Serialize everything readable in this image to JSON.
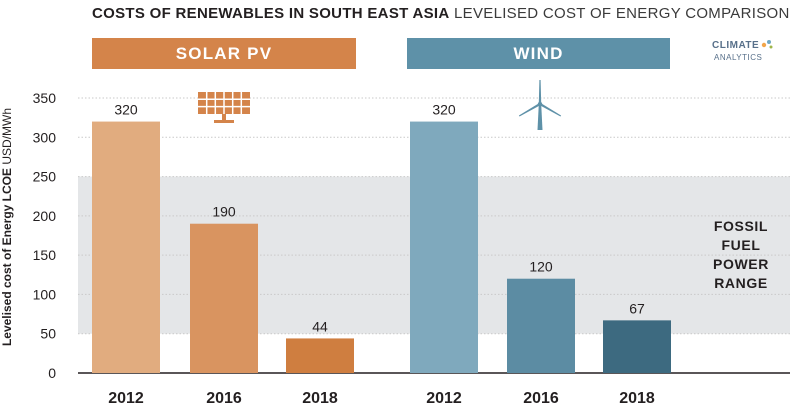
{
  "header": {
    "title_bold": "COSTS OF RENEWABLES IN SOUTH EAST ASIA",
    "title_light": "LEVELISED COST OF ENERGY COMPARISON"
  },
  "logo": {
    "line1": "CLIMATE",
    "line2": "ANALYTICS"
  },
  "colors": {
    "solar_2012": "#e1ac7f",
    "solar_2016": "#d99460",
    "solar_2018": "#cf7e40",
    "wind_2012": "#7fa9bd",
    "wind_2016": "#5c8ca3",
    "wind_2018": "#3d6a80",
    "solar_band": "#d4844a",
    "wind_band": "#5e91a8",
    "fossil_band": "#e4e6e8"
  },
  "chart_data": {
    "type": "bar",
    "title": "COSTS OF RENEWABLES IN SOUTH EAST ASIA LEVELISED COST OF ENERGY COMPARISON",
    "ylabel_bold": "Levelised cost of Energy LCOE",
    "ylabel_unit": "USD/MWh",
    "ylim": [
      0,
      350
    ],
    "yticks": [
      0,
      50,
      100,
      150,
      200,
      250,
      300,
      350
    ],
    "groups": [
      {
        "name": "SOLAR PV",
        "icon": "solar-panel-icon",
        "categories": [
          "2012",
          "2016",
          "2018"
        ],
        "values": [
          320,
          190,
          44
        ],
        "labels": [
          "320",
          "190",
          "44"
        ]
      },
      {
        "name": "WIND",
        "icon": "wind-turbine-icon",
        "categories": [
          "2012",
          "2016",
          "2018"
        ],
        "values": [
          320,
          120,
          67
        ],
        "labels": [
          "320",
          "120",
          "67"
        ]
      }
    ],
    "fossil_range": {
      "lines": [
        "FOSSIL",
        "FUEL",
        "POWER",
        "RANGE"
      ],
      "range": [
        50,
        250
      ]
    }
  }
}
